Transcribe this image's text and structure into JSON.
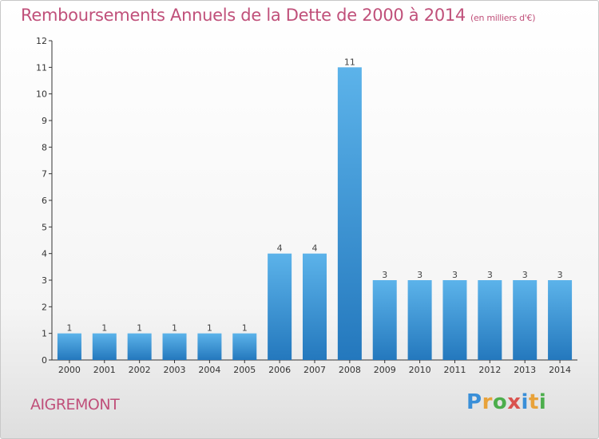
{
  "header": {
    "title": "Remboursements Annuels de la Dette de 2000 à 2014",
    "subtitle": "(en milliers d'€)"
  },
  "footer": {
    "commune": "AIGREMONT",
    "brand_letters": [
      {
        "ch": "P",
        "color": "#3a8fd8"
      },
      {
        "ch": "r",
        "color": "#e8a23a"
      },
      {
        "ch": "o",
        "color": "#4cae4c"
      },
      {
        "ch": "x",
        "color": "#d9534f"
      },
      {
        "ch": "i",
        "color": "#3a8fd8"
      },
      {
        "ch": "t",
        "color": "#e8a23a"
      },
      {
        "ch": "i",
        "color": "#4cae4c"
      }
    ]
  },
  "colors": {
    "bar_top": "#5cb3ea",
    "bar_bottom": "#2478bd",
    "title": "#c0507a"
  },
  "chart_data": {
    "type": "bar",
    "title": "Remboursements Annuels de la Dette de 2000 à 2014",
    "subtitle": "(en milliers d'€)",
    "categories": [
      "2000",
      "2001",
      "2002",
      "2003",
      "2004",
      "2005",
      "2006",
      "2007",
      "2008",
      "2009",
      "2010",
      "2011",
      "2012",
      "2013",
      "2014"
    ],
    "values": [
      1,
      1,
      1,
      1,
      1,
      1,
      4,
      4,
      11,
      3,
      3,
      3,
      3,
      3,
      3
    ],
    "data_labels": [
      "1",
      "1",
      "1",
      "1",
      "1",
      "1",
      "4",
      "4",
      "11",
      "3",
      "3",
      "3",
      "3",
      "3",
      "3"
    ],
    "yticks": [
      "0",
      "1",
      "2",
      "3",
      "4",
      "5",
      "6",
      "7",
      "8",
      "9",
      "10",
      "11",
      "12"
    ],
    "ylim": [
      0,
      12
    ],
    "grid": false,
    "legend": "none"
  }
}
